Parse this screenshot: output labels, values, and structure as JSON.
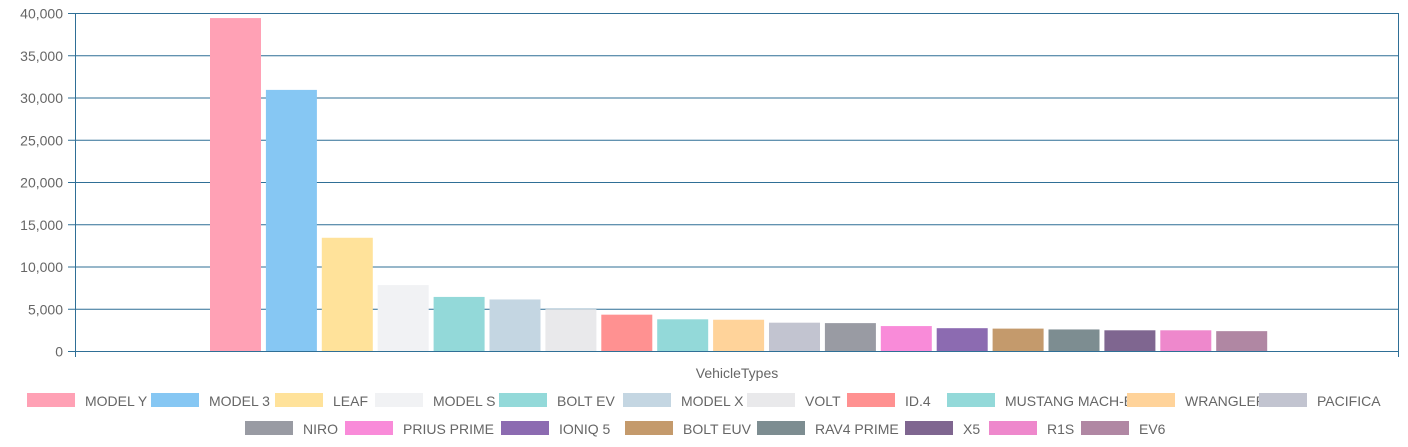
{
  "chart_data": {
    "type": "bar",
    "xlabel": "VehicleTypes",
    "ylim": [
      0,
      40000
    ],
    "yticks": [
      0,
      5000,
      10000,
      15000,
      20000,
      25000,
      30000,
      35000,
      40000
    ],
    "ytick_labels": [
      "0",
      "5,000",
      "10,000",
      "15,000",
      "20,000",
      "25,000",
      "30,000",
      "35,000",
      "40,000"
    ],
    "grid": true,
    "legend_position": "bottom",
    "categories": [
      "MODEL Y",
      "MODEL 3",
      "LEAF",
      "MODEL S",
      "BOLT EV",
      "MODEL X",
      "VOLT",
      "ID.4",
      "MUSTANG MACH-E",
      "WRANGLER",
      "PACIFICA",
      "NIRO",
      "PRIUS PRIME",
      "IONIQ 5",
      "BOLT EUV",
      "RAV4 PRIME",
      "X5",
      "R1S",
      "EV6"
    ],
    "values": [
      39400,
      30900,
      13400,
      7800,
      6400,
      6100,
      4950,
      4300,
      3750,
      3700,
      3350,
      3300,
      2950,
      2700,
      2650,
      2550,
      2450,
      2450,
      2350
    ],
    "colors": [
      "#ffa1b5",
      "#86c7f3",
      "#ffe29a",
      "#f1f2f4",
      "#93d9d9",
      "#c4d6e2",
      "#e9e9eb",
      "#ff9191",
      "#93d9d9",
      "#ffd39a",
      "#c2c4d0",
      "#999ba3",
      "#f98bd9",
      "#8c6bb1",
      "#c49a6c",
      "#7d8d91",
      "#7f6690",
      "#ee88cc",
      "#b087a3"
    ]
  }
}
